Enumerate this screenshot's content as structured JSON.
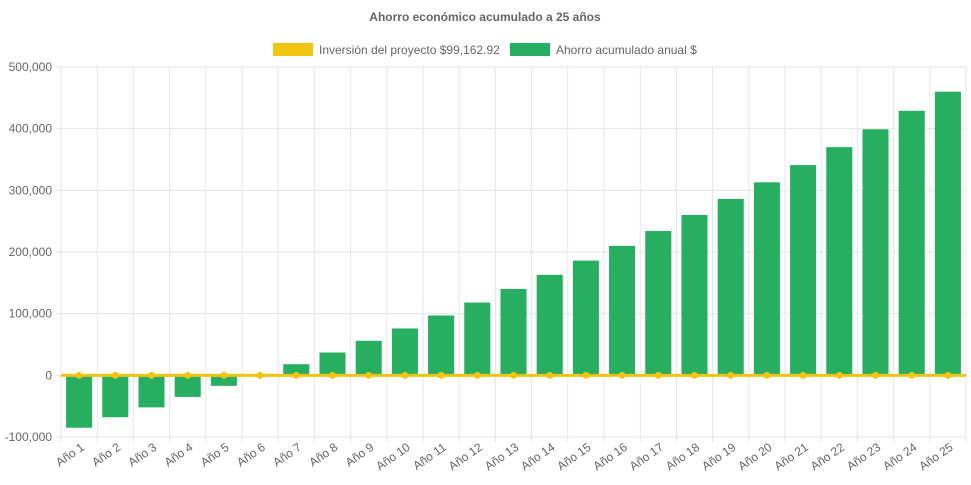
{
  "chart_data": {
    "type": "bar",
    "title": "Ahorro económico acumulado a 25 años",
    "categories": [
      "Año 1",
      "Año 2",
      "Año 3",
      "Año 4",
      "Año 5",
      "Año 6",
      "Año 7",
      "Año 8",
      "Año 9",
      "Año 10",
      "Año 11",
      "Año 12",
      "Año 13",
      "Año 14",
      "Año 15",
      "Año 16",
      "Año 17",
      "Año 18",
      "Año 19",
      "Año 20",
      "Año 21",
      "Año 22",
      "Año 23",
      "Año 24",
      "Año 25"
    ],
    "series": [
      {
        "name": "Inversión del proyecto $99,162.92",
        "type": "line",
        "color": "#f1c40f",
        "values": [
          0,
          0,
          0,
          0,
          0,
          0,
          0,
          0,
          0,
          0,
          0,
          0,
          0,
          0,
          0,
          0,
          0,
          0,
          0,
          0,
          0,
          0,
          0,
          0,
          0
        ]
      },
      {
        "name": "Ahorro acumulado anual $",
        "type": "bar",
        "color": "#27ae60",
        "values": [
          -85000,
          -68000,
          -52000,
          -35000,
          -17000,
          0,
          18000,
          37000,
          56000,
          76000,
          97000,
          118000,
          140000,
          163000,
          186000,
          210000,
          234000,
          260000,
          286000,
          313000,
          341000,
          370000,
          399000,
          429000,
          460000
        ]
      }
    ],
    "ylim": [
      -100000,
      500000
    ],
    "yticks": [
      "-100,000",
      "0",
      "100,000",
      "200,000",
      "300,000",
      "400,000",
      "500,000"
    ],
    "ytick_values": [
      -100000,
      0,
      100000,
      200000,
      300000,
      400000,
      500000
    ],
    "grid": true,
    "legend": "top-center"
  }
}
